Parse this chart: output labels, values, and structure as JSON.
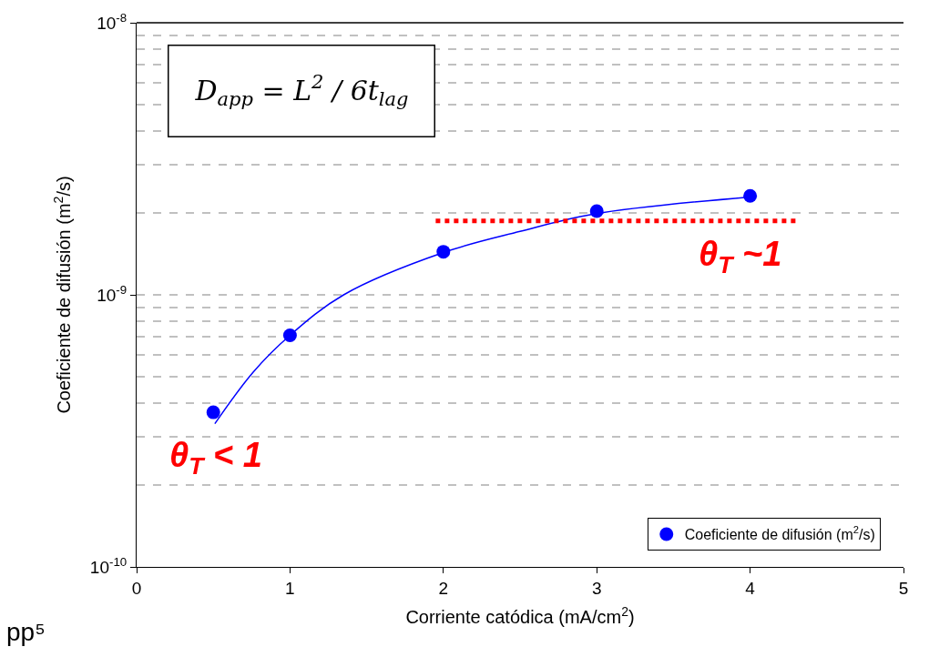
{
  "chart_data": {
    "type": "scatter",
    "xlabel": "Corriente catódica (mA/cm$^{2}$)",
    "ylabel": "Coeficiente de difusión (m$^{2}$/s)",
    "x": [
      0.5,
      1,
      2,
      3,
      4
    ],
    "series": [
      {
        "name": "Coeficiente de difusión (m$^{2}$/s)",
        "color": "#0000ff",
        "values": [
          3.7e-10,
          7.1e-10,
          1.44e-09,
          2.03e-09,
          2.31e-09
        ],
        "marker": "circle"
      },
      {
        "type": "line",
        "color": "#0000ff",
        "x": [
          0.51,
          0.76,
          1.0,
          1.35,
          2.0,
          2.5,
          2.98,
          4.0
        ],
        "values": [
          3.36e-10,
          5.2e-10,
          7.1e-10,
          1e-09,
          1.43e-09,
          1.71e-09,
          1.98e-09,
          2.29e-09
        ],
        "marker": "none",
        "line_style": "solid"
      },
      {
        "type": "line",
        "color": "#ff0000",
        "x": [
          1.95,
          4.3
        ],
        "values": [
          1.87e-09,
          1.87e-09
        ],
        "marker": "none",
        "line_style": "dotted"
      }
    ],
    "log": "y",
    "xlim": [
      0,
      5
    ],
    "xticks": [
      0,
      1,
      2,
      3,
      4,
      5
    ],
    "ylim": [
      1e-10,
      1e-08
    ],
    "yticks": [
      {
        "value": 1e-10,
        "label": "10$^{-10}$"
      },
      {
        "value": 1e-09,
        "label": "10$^{-9}$"
      },
      {
        "value": 1e-08,
        "label": "10$^{-8}$"
      }
    ],
    "grid": "y",
    "legend": "bottom right",
    "annotations": [
      "θ$_{T}$ < 1",
      "θ$_{T}$ ~1",
      "D$_{app}$ = L$^{2}$ / 6t$_{lag}$",
      "pp⁵"
    ]
  }
}
